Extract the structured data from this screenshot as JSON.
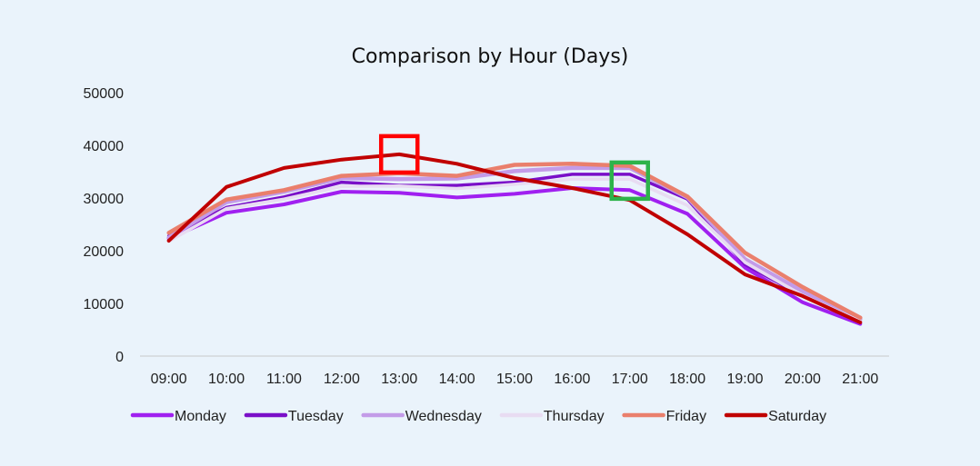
{
  "chart_data": {
    "type": "line",
    "title": "Comparison by Hour (Days)",
    "xlabel": "",
    "ylabel": "",
    "categories": [
      "09:00",
      "10:00",
      "11:00",
      "12:00",
      "13:00",
      "14:00",
      "15:00",
      "16:00",
      "17:00",
      "18:00",
      "19:00",
      "20:00",
      "21:00"
    ],
    "ylim": [
      0,
      50000
    ],
    "yticks": [
      0,
      10000,
      20000,
      30000,
      40000,
      50000
    ],
    "grid": false,
    "legend_position": "bottom",
    "series": [
      {
        "name": "Monday",
        "color": "#a020f0",
        "values": [
          22300,
          27200,
          28800,
          31200,
          31000,
          30100,
          30800,
          31900,
          31500,
          27000,
          16800,
          10200,
          6100
        ]
      },
      {
        "name": "Tuesday",
        "color": "#7a0fc8",
        "values": [
          22800,
          28200,
          30200,
          33000,
          32400,
          32400,
          33000,
          34500,
          34500,
          29800,
          17400,
          11400,
          6700
        ]
      },
      {
        "name": "Wednesday",
        "color": "#c39be8",
        "values": [
          22500,
          29200,
          31200,
          33800,
          33600,
          33700,
          35100,
          35700,
          35700,
          30100,
          18400,
          12300,
          7000
        ]
      },
      {
        "name": "Thursday",
        "color": "#e8dcf2",
        "values": [
          21800,
          28000,
          29800,
          32200,
          32300,
          31800,
          32600,
          33600,
          33600,
          28600,
          17800,
          11500,
          6600
        ]
      },
      {
        "name": "Friday",
        "color": "#ea7f6c",
        "values": [
          23400,
          29700,
          31500,
          34200,
          34700,
          34200,
          36300,
          36500,
          36100,
          30300,
          19600,
          13100,
          7300
        ]
      },
      {
        "name": "Saturday",
        "color": "#c00000",
        "values": [
          21900,
          32100,
          35700,
          37300,
          38300,
          36500,
          33800,
          31900,
          29600,
          23100,
          15500,
          11400,
          6400
        ]
      }
    ],
    "annotations": [
      {
        "category": "13:00",
        "value": 38300,
        "color": "#ff0000",
        "shape": "square"
      },
      {
        "category": "17:00",
        "value": 33300,
        "color": "#2db34a",
        "shape": "square"
      }
    ]
  }
}
